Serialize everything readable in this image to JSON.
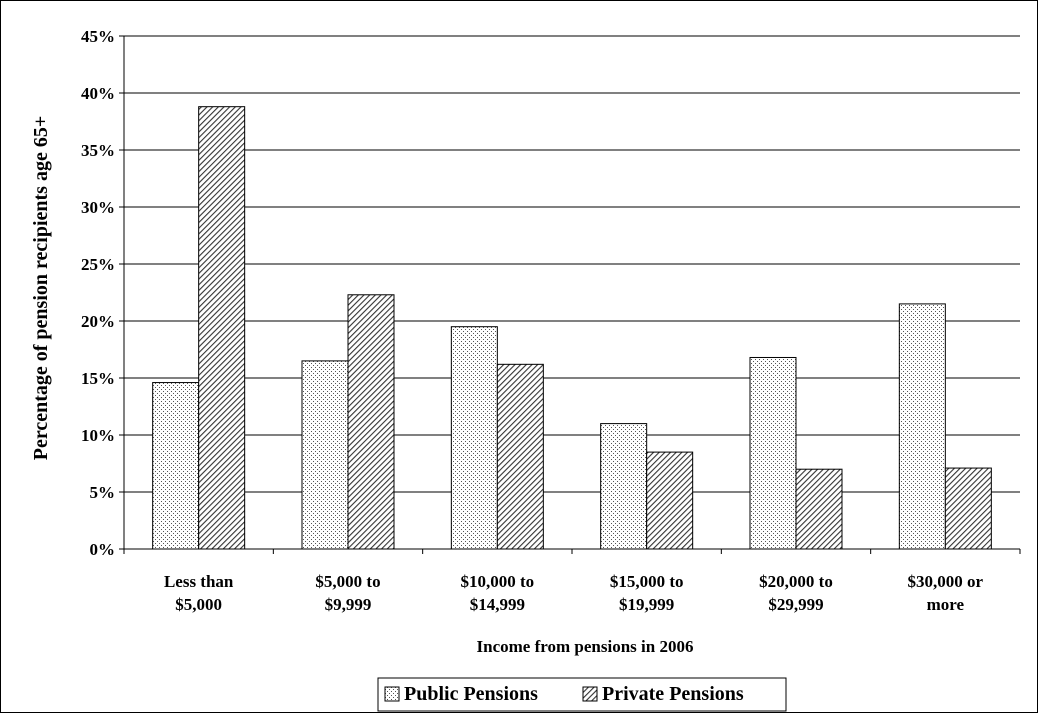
{
  "chart_data": {
    "type": "bar",
    "title": "",
    "xlabel": "Income from pensions in 2006",
    "ylabel": "Percentage of pension recipients age 65+",
    "categories": [
      [
        "Less than",
        "$5,000"
      ],
      [
        "$5,000 to",
        "$9,999"
      ],
      [
        "$10,000 to",
        "$14,999"
      ],
      [
        "$15,000 to",
        "$19,999"
      ],
      [
        "$20,000 to",
        "$29,999"
      ],
      [
        "$30,000 or",
        "more"
      ]
    ],
    "series": [
      {
        "name": "Public Pensions",
        "values": [
          14.6,
          16.5,
          19.5,
          11.0,
          16.8,
          21.5
        ]
      },
      {
        "name": "Private Pensions",
        "values": [
          38.8,
          22.3,
          16.2,
          8.5,
          7.0,
          7.1
        ]
      }
    ],
    "ylim": [
      0,
      45
    ],
    "yticks": [
      "0%",
      "5%",
      "10%",
      "15%",
      "20%",
      "25%",
      "30%",
      "35%",
      "40%",
      "45%"
    ],
    "ytick_values": [
      0,
      5,
      10,
      15,
      20,
      25,
      30,
      35,
      40,
      45
    ],
    "grid": true,
    "legend_position": "bottom-center"
  }
}
